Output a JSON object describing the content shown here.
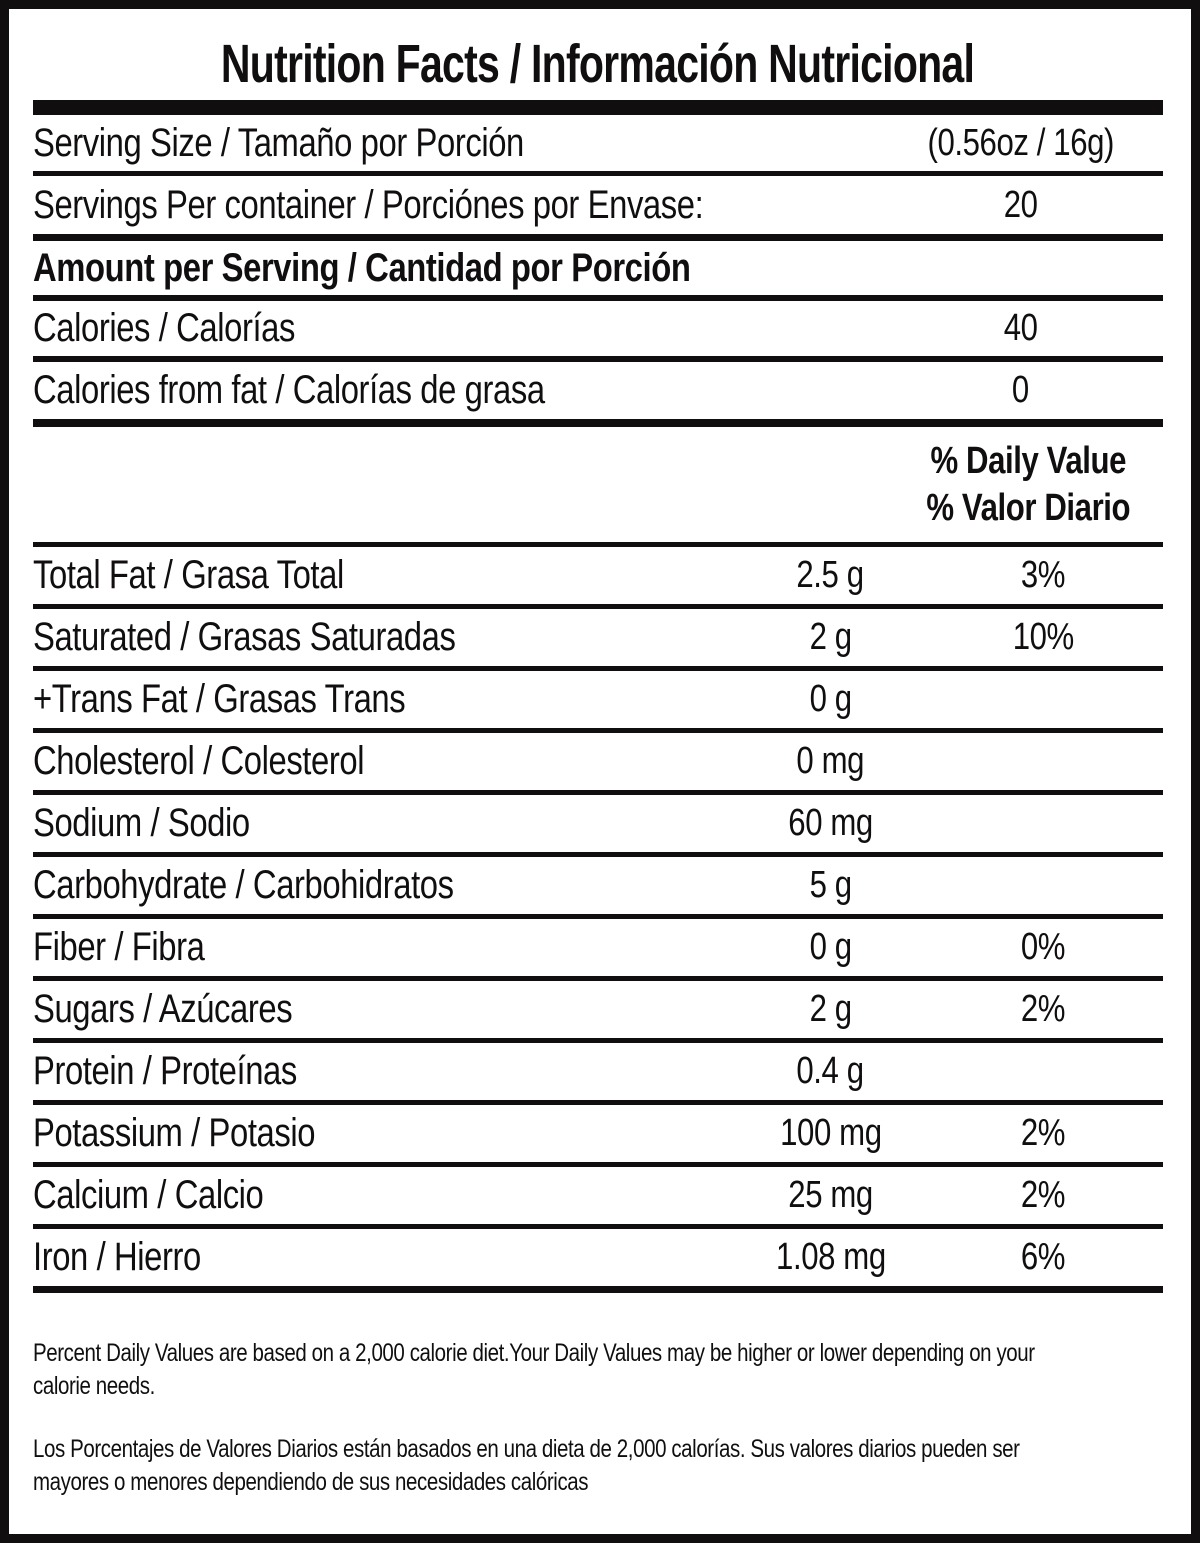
{
  "label": {
    "title": "Nutrition Facts / Información Nutricional",
    "serving_size": {
      "label": "Serving Size / Tamaño por Porción",
      "value": "(0.56oz / 16g)"
    },
    "servings_per_container": {
      "label": "Servings Per container / Porciónes por Envase:",
      "value": "20"
    },
    "amount_per_serving": "Amount per Serving / Cantidad por Porción",
    "calories": {
      "label": "Calories / Calorías",
      "value": "40"
    },
    "calories_from_fat": {
      "label": "Calories from fat / Calorías de grasa",
      "value": "0"
    },
    "daily_value_header": {
      "line1": "% Daily Value",
      "line2": "% Valor Diario"
    },
    "nutrients": [
      {
        "label": "Total Fat / Grasa Total",
        "amount": "2.5 g",
        "dv": "3%"
      },
      {
        "label": "Saturated / Grasas Saturadas",
        "amount": "2 g",
        "dv": "10%"
      },
      {
        "label": "+Trans Fat / Grasas Trans",
        "amount": "0 g",
        "dv": ""
      },
      {
        "label": "Cholesterol / Colesterol",
        "amount": "0 mg",
        "dv": ""
      },
      {
        "label": "Sodium / Sodio",
        "amount": "60 mg",
        "dv": ""
      },
      {
        "label": "Carbohydrate / Carbohidratos",
        "amount": "5 g",
        "dv": ""
      },
      {
        "label": "Fiber / Fibra",
        "amount": "0 g",
        "dv": "0%"
      },
      {
        "label": "Sugars / Azúcares",
        "amount": "2 g",
        "dv": "2%"
      },
      {
        "label": "Protein / Proteínas",
        "amount": "0.4 g",
        "dv": ""
      },
      {
        "label": "Potassium / Potasio",
        "amount": "100 mg",
        "dv": "2%"
      },
      {
        "label": "Calcium / Calcio",
        "amount": "25 mg",
        "dv": "2%"
      },
      {
        "label": "Iron / Hierro",
        "amount": "1.08 mg",
        "dv": "6%"
      }
    ],
    "footnotes": {
      "en": {
        "line1": "Percent Daily Values are based on a 2,000 calorie diet.Your Daily Values may be higher or lower depending on your",
        "line2": "calorie needs."
      },
      "es": {
        "line1": "Los Porcentajes de Valores Diarios están basados en una dieta de 2,000 calorías. Sus valores diarios pueden ser",
        "line2": "mayores o menores dependiendo de sus necesidades calóricas"
      }
    },
    "colors": {
      "ink": "#110e0f",
      "background": "#ffffff"
    }
  }
}
